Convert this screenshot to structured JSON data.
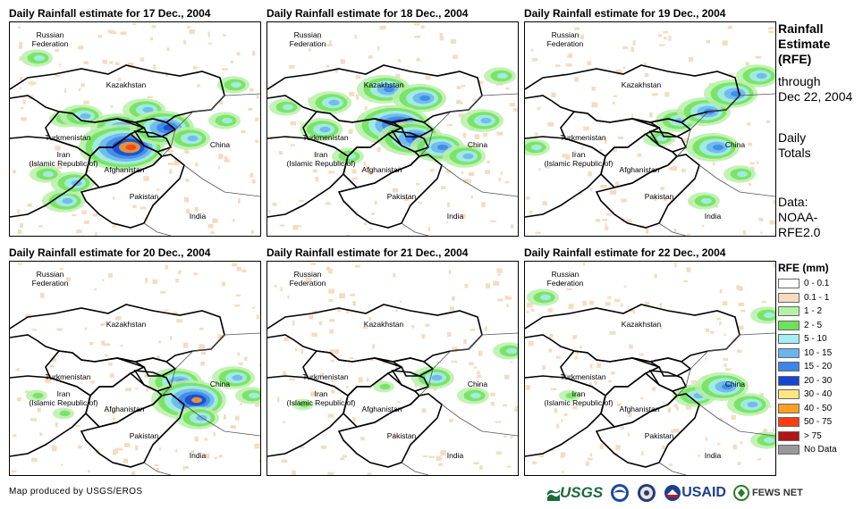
{
  "panels": [
    {
      "title": "Daily Rainfall estimate for 17 Dec., 2004",
      "rain_blobs": [
        [
          62,
          108,
          2
        ],
        [
          80,
          105,
          3
        ],
        [
          120,
          118,
          4
        ],
        [
          150,
          98,
          3
        ],
        [
          110,
          133,
          4
        ],
        [
          125,
          140,
          7
        ],
        [
          170,
          118,
          5
        ],
        [
          200,
          130,
          3
        ],
        [
          60,
          200,
          3
        ],
        [
          70,
          180,
          3
        ],
        [
          40,
          170,
          2
        ],
        [
          30,
          40,
          2
        ],
        [
          240,
          110,
          2
        ],
        [
          250,
          70,
          2
        ]
      ]
    },
    {
      "title": "Daily Rainfall estimate for 18 Dec., 2004",
      "rain_blobs": [
        [
          20,
          95,
          2
        ],
        [
          70,
          90,
          3
        ],
        [
          130,
          75,
          4
        ],
        [
          170,
          85,
          4
        ],
        [
          140,
          115,
          6
        ],
        [
          160,
          130,
          5
        ],
        [
          190,
          140,
          4
        ],
        [
          220,
          150,
          3
        ],
        [
          240,
          110,
          3
        ],
        [
          260,
          60,
          2
        ],
        [
          90,
          150,
          2
        ],
        [
          60,
          120,
          3
        ]
      ]
    },
    {
      "title": "Daily Rainfall estimate for 19 Dec., 2004",
      "rain_blobs": [
        [
          10,
          140,
          2
        ],
        [
          170,
          110,
          3
        ],
        [
          200,
          100,
          4
        ],
        [
          230,
          80,
          4
        ],
        [
          210,
          140,
          4
        ],
        [
          260,
          60,
          3
        ],
        [
          240,
          170,
          2
        ],
        [
          200,
          200,
          2
        ],
        [
          150,
          130,
          2
        ]
      ]
    },
    {
      "title": "Daily Rainfall estimate for 20 Dec., 2004",
      "rain_blobs": [
        [
          250,
          130,
          3
        ],
        [
          270,
          150,
          2
        ],
        [
          185,
          135,
          4
        ],
        [
          200,
          155,
          6
        ],
        [
          210,
          175,
          3
        ],
        [
          60,
          170,
          1
        ],
        [
          30,
          150,
          1
        ]
      ]
    },
    {
      "title": "Daily Rainfall estimate for 21 Dec., 2004",
      "rain_blobs": [
        [
          185,
          130,
          3
        ],
        [
          230,
          150,
          2
        ],
        [
          270,
          100,
          2
        ],
        [
          40,
          160,
          1
        ],
        [
          130,
          140,
          1
        ]
      ]
    },
    {
      "title": "Daily Rainfall estimate for 22 Dec., 2004",
      "rain_blobs": [
        [
          190,
          150,
          3
        ],
        [
          220,
          140,
          4
        ],
        [
          250,
          160,
          3
        ],
        [
          270,
          200,
          2
        ],
        [
          20,
          40,
          2
        ],
        [
          50,
          150,
          1
        ],
        [
          270,
          60,
          2
        ]
      ]
    }
  ],
  "map_labels": {
    "russia": "Russian\nFederation",
    "kazakhstan": "Kazakhstan",
    "turkmenistan": "Turkmenistan",
    "iran": "Iran\n(Islamic Republic of)",
    "afghanistan": "Afghanistan",
    "pakistan": "Pakistan",
    "china": "China",
    "india": "India"
  },
  "side_title": "Rainfall\nEstimate\n(RFE)",
  "side_through": "through\nDec 22, 2004",
  "side_totals": "Daily\nTotals",
  "side_data": "Data:\nNOAA-\nRFE2.0",
  "legend": {
    "title": "RFE (mm)",
    "items": [
      {
        "label": "0 - 0.1",
        "color": "#ffffff"
      },
      {
        "label": "0.1 - 1",
        "color": "#f5dcc0"
      },
      {
        "label": "1 - 2",
        "color": "#b7f0a8"
      },
      {
        "label": "2 - 5",
        "color": "#6ee25a"
      },
      {
        "label": "5 - 10",
        "color": "#a8ecf5"
      },
      {
        "label": "10 - 15",
        "color": "#6ab4f0"
      },
      {
        "label": "15 - 20",
        "color": "#3c86e8"
      },
      {
        "label": "20 - 30",
        "color": "#1446d4"
      },
      {
        "label": "30 - 40",
        "color": "#ffe680"
      },
      {
        "label": "40 - 50",
        "color": "#ffa020"
      },
      {
        "label": "50 - 75",
        "color": "#ff3c14"
      },
      {
        "label": "> 75",
        "color": "#b41414"
      },
      {
        "label": "No Data",
        "color": "#999999"
      }
    ]
  },
  "credit": "Map produced by USGS/EROS",
  "logos": {
    "usgs": "USGS",
    "usaid": "USAID",
    "fews": "FEWS NET"
  }
}
